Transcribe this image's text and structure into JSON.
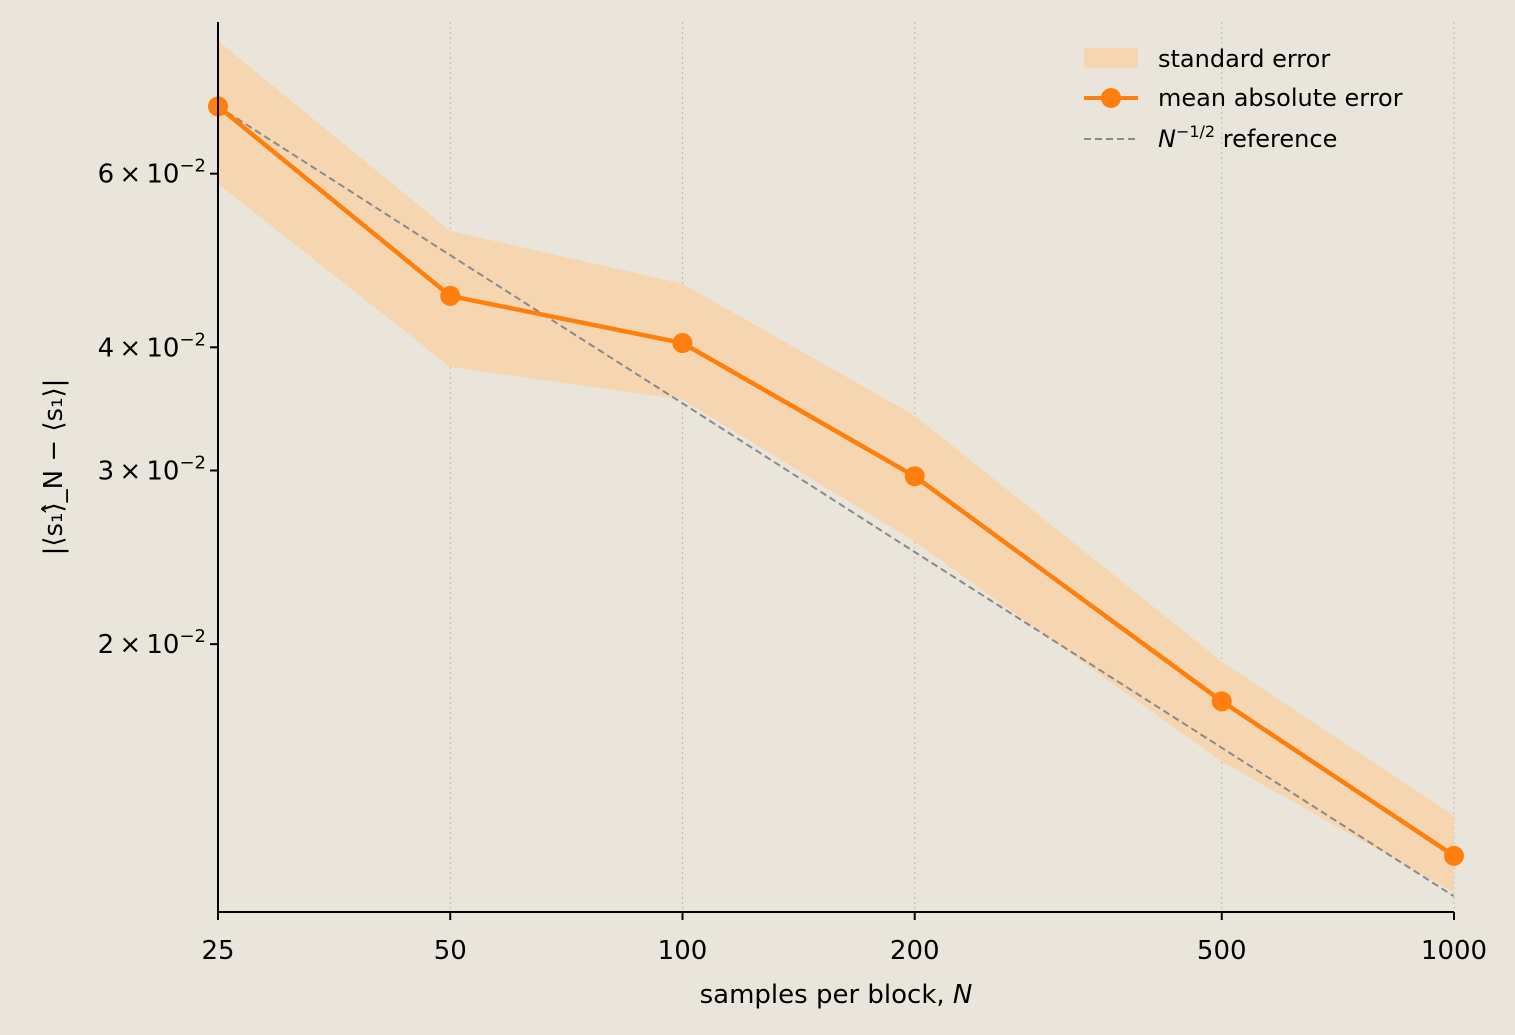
{
  "chart_data": {
    "type": "line",
    "xlabel_text": "samples per block, ",
    "xlabel_var": "N",
    "ylabel": "|⟨s₁⟩̂_N − ⟨s₁⟩|",
    "x_scale": "log",
    "y_scale": "log",
    "xlim": [
      25,
      1000
    ],
    "ylim": [
      0.0107,
      0.0855
    ],
    "x_ticks": [
      25,
      50,
      100,
      200,
      500,
      1000
    ],
    "x_tick_labels": [
      "25",
      "50",
      "100",
      "200",
      "500",
      "1000"
    ],
    "y_ticks": [
      0.06,
      0.04,
      0.03,
      0.02
    ],
    "y_tick_labels": [
      {
        "mant": "6",
        "base": "10",
        "exp": "−2"
      },
      {
        "mant": "4",
        "base": "10",
        "exp": "−2"
      },
      {
        "mant": "3",
        "base": "10",
        "exp": "−2"
      },
      {
        "mant": "2",
        "base": "10",
        "exp": "−2"
      }
    ],
    "grid": "x-dotted",
    "legend_position": "top-right",
    "x": [
      25,
      50,
      100,
      200,
      500,
      1000
    ],
    "series": [
      {
        "name": "mean absolute error",
        "kind": "line-marker",
        "color": "#ff7f0e",
        "values": [
          0.0702,
          0.0451,
          0.0404,
          0.0296,
          0.0175,
          0.0122
        ]
      },
      {
        "name": "standard error",
        "kind": "band",
        "color": "#f6d6b0",
        "lower": [
          0.0586,
          0.0382,
          0.0354,
          0.0254,
          0.0152,
          0.0112
        ],
        "upper": [
          0.0818,
          0.0525,
          0.0464,
          0.0341,
          0.0192,
          0.0134
        ]
      },
      {
        "name_var": "N",
        "name_exp": "−1/2",
        "name_text": " reference",
        "kind": "dashed",
        "color": "#8a8a8a",
        "values": [
          0.0702,
          0.0496,
          0.0351,
          0.0248,
          0.0157,
          0.0111
        ]
      }
    ]
  }
}
